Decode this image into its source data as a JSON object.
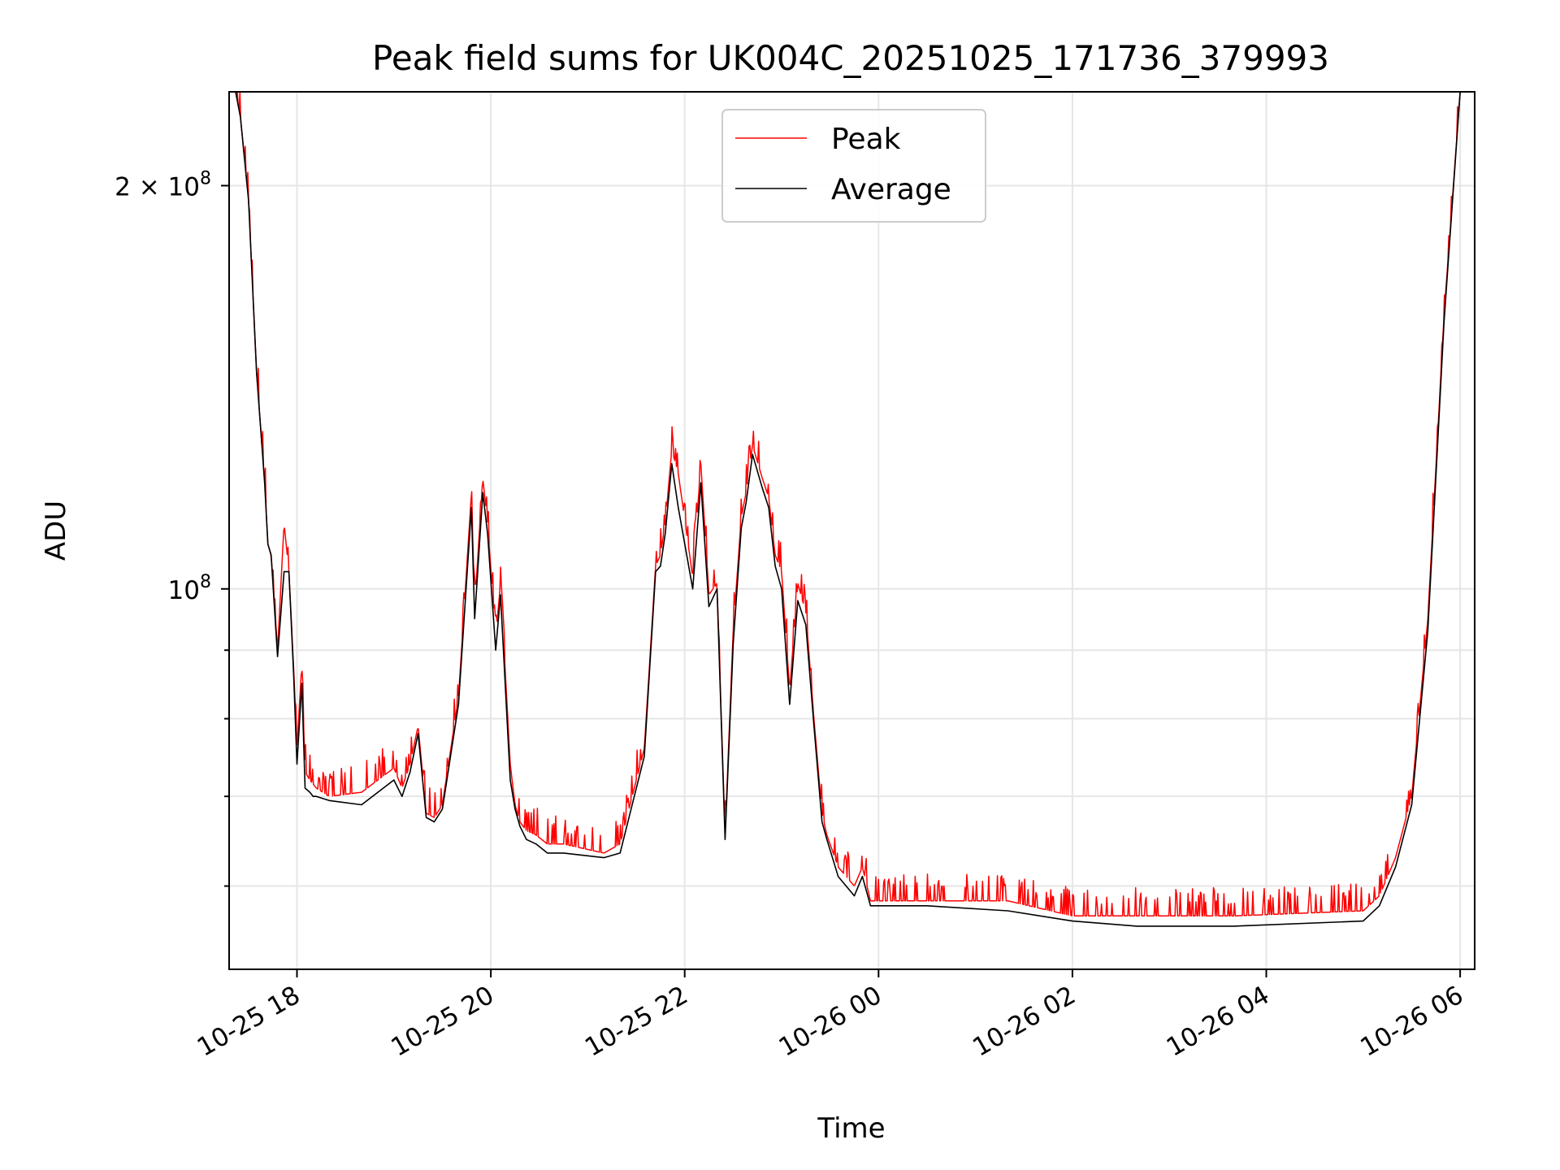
{
  "chart_data": {
    "type": "line",
    "title": "Peak field sums for UK004C_20251025_171736_379993",
    "xlabel": "Time",
    "ylabel": "ADU",
    "y_scale": "log",
    "ylim": [
      52000000,
      235000000
    ],
    "xlim": [
      "2025-10-25 17:18",
      "2025-10-26 06:09"
    ],
    "x_ticks": [
      {
        "value": "2025-10-25 18:00",
        "label": "10-25 18"
      },
      {
        "value": "2025-10-25 20:00",
        "label": "10-25 20"
      },
      {
        "value": "2025-10-25 22:00",
        "label": "10-25 22"
      },
      {
        "value": "2025-10-26 00:00",
        "label": "10-26 00"
      },
      {
        "value": "2025-10-26 02:00",
        "label": "10-26 02"
      },
      {
        "value": "2025-10-26 04:00",
        "label": "10-26 04"
      },
      {
        "value": "2025-10-26 06:00",
        "label": "10-26 06"
      }
    ],
    "y_ticks_labeled": [
      {
        "value": 100000000,
        "base": "10",
        "exp": "8",
        "mult": ""
      },
      {
        "value": 200000000,
        "base": "10",
        "exp": "8",
        "mult": "2 × "
      }
    ],
    "y_ticks_minor": [
      60000000,
      70000000,
      80000000,
      90000000
    ],
    "grid": true,
    "legend_position": "top-center",
    "series": [
      {
        "name": "Peak",
        "color": "#ff0000",
        "spikes_above_average": true,
        "x": [
          "2025-10-25 17:22",
          "2025-10-25 17:25",
          "2025-10-25 17:30",
          "2025-10-25 17:35",
          "2025-10-25 17:40",
          "2025-10-25 17:42",
          "2025-10-25 17:44",
          "2025-10-25 17:48",
          "2025-10-25 17:52",
          "2025-10-25 17:55",
          "2025-10-25 17:58",
          "2025-10-25 18:00",
          "2025-10-25 18:03",
          "2025-10-25 18:05",
          "2025-10-25 18:08",
          "2025-10-25 18:10",
          "2025-10-25 18:12",
          "2025-10-25 18:20",
          "2025-10-25 18:40",
          "2025-10-25 19:00",
          "2025-10-25 19:05",
          "2025-10-25 19:10",
          "2025-10-25 19:15",
          "2025-10-25 19:20",
          "2025-10-25 19:25",
          "2025-10-25 19:30",
          "2025-10-25 19:40",
          "2025-10-25 19:48",
          "2025-10-25 19:50",
          "2025-10-25 19:55",
          "2025-10-25 19:58",
          "2025-10-25 20:03",
          "2025-10-25 20:06",
          "2025-10-25 20:12",
          "2025-10-25 20:15",
          "2025-10-25 20:18",
          "2025-10-25 20:22",
          "2025-10-25 20:28",
          "2025-10-25 20:35",
          "2025-10-25 20:45",
          "2025-10-25 21:10",
          "2025-10-25 21:20",
          "2025-10-25 21:35",
          "2025-10-25 21:42",
          "2025-10-25 21:45",
          "2025-10-25 21:48",
          "2025-10-25 21:52",
          "2025-10-25 21:56",
          "2025-10-25 22:05",
          "2025-10-25 22:10",
          "2025-10-25 22:15",
          "2025-10-25 22:20",
          "2025-10-25 22:25",
          "2025-10-25 22:30",
          "2025-10-25 22:35",
          "2025-10-25 22:38",
          "2025-10-25 22:42",
          "2025-10-25 22:48",
          "2025-10-25 22:52",
          "2025-10-25 22:56",
          "2025-10-25 23:00",
          "2025-10-25 23:05",
          "2025-10-25 23:10",
          "2025-10-25 23:15",
          "2025-10-25 23:20",
          "2025-10-25 23:25",
          "2025-10-25 23:28",
          "2025-10-25 23:35",
          "2025-10-25 23:45",
          "2025-10-25 23:50",
          "2025-10-25 23:55",
          "2025-10-26 00:30",
          "2025-10-26 01:20",
          "2025-10-26 02:00",
          "2025-10-26 02:40",
          "2025-10-26 03:40",
          "2025-10-26 05:00",
          "2025-10-26 05:10",
          "2025-10-26 05:20",
          "2025-10-26 05:30",
          "2025-10-26 05:40",
          "2025-10-26 05:50",
          "2025-10-26 06:00"
        ],
        "y": [
          235000000,
          225000000,
          195000000,
          145000000,
          120000000,
          108000000,
          106000000,
          90000000,
          112000000,
          103000000,
          87000000,
          76000000,
          88000000,
          73000000,
          72000000,
          71500000,
          71000000,
          70000000,
          70500000,
          73500000,
          71000000,
          74000000,
          79000000,
          68000000,
          67500000,
          69000000,
          83000000,
          118000000,
          97000000,
          121000000,
          112000000,
          92000000,
          101000000,
          74000000,
          69000000,
          67000000,
          66000000,
          65500000,
          64500000,
          64500000,
          63500000,
          64500000,
          76000000,
          104000000,
          106000000,
          112000000,
          127000000,
          122000000,
          102000000,
          124000000,
          99000000,
          101000000,
          65500000,
          93000000,
          113000000,
          118000000,
          128000000,
          121000000,
          117000000,
          106000000,
          103000000,
          84000000,
          101000000,
          96000000,
          80000000,
          68000000,
          65500000,
          62000000,
          60000000,
          62000000,
          58500000,
          58500000,
          58500000,
          57000000,
          57000000,
          57000000,
          57500000,
          59000000,
          63000000,
          70000000,
          95000000,
          160000000,
          235000000
        ]
      },
      {
        "name": "Average",
        "color": "#000000",
        "x": [
          "2025-10-25 17:22",
          "2025-10-25 17:25",
          "2025-10-25 17:30",
          "2025-10-25 17:35",
          "2025-10-25 17:40",
          "2025-10-25 17:42",
          "2025-10-25 17:44",
          "2025-10-25 17:48",
          "2025-10-25 17:52",
          "2025-10-25 17:55",
          "2025-10-25 17:58",
          "2025-10-25 18:00",
          "2025-10-25 18:03",
          "2025-10-25 18:05",
          "2025-10-25 18:08",
          "2025-10-25 18:10",
          "2025-10-25 18:12",
          "2025-10-25 18:20",
          "2025-10-25 18:40",
          "2025-10-25 19:00",
          "2025-10-25 19:05",
          "2025-10-25 19:10",
          "2025-10-25 19:15",
          "2025-10-25 19:20",
          "2025-10-25 19:25",
          "2025-10-25 19:30",
          "2025-10-25 19:40",
          "2025-10-25 19:48",
          "2025-10-25 19:50",
          "2025-10-25 19:55",
          "2025-10-25 19:58",
          "2025-10-25 20:03",
          "2025-10-25 20:06",
          "2025-10-25 20:12",
          "2025-10-25 20:15",
          "2025-10-25 20:18",
          "2025-10-25 20:22",
          "2025-10-25 20:28",
          "2025-10-25 20:35",
          "2025-10-25 20:45",
          "2025-10-25 21:10",
          "2025-10-25 21:20",
          "2025-10-25 21:35",
          "2025-10-25 21:42",
          "2025-10-25 21:45",
          "2025-10-25 21:48",
          "2025-10-25 21:52",
          "2025-10-25 21:56",
          "2025-10-25 22:05",
          "2025-10-25 22:10",
          "2025-10-25 22:15",
          "2025-10-25 22:20",
          "2025-10-25 22:25",
          "2025-10-25 22:30",
          "2025-10-25 22:35",
          "2025-10-25 22:38",
          "2025-10-25 22:42",
          "2025-10-25 22:48",
          "2025-10-25 22:52",
          "2025-10-25 22:56",
          "2025-10-25 23:00",
          "2025-10-25 23:05",
          "2025-10-25 23:10",
          "2025-10-25 23:15",
          "2025-10-25 23:20",
          "2025-10-25 23:25",
          "2025-10-25 23:28",
          "2025-10-25 23:35",
          "2025-10-25 23:45",
          "2025-10-25 23:50",
          "2025-10-25 23:55",
          "2025-10-26 00:30",
          "2025-10-26 01:20",
          "2025-10-26 02:00",
          "2025-10-26 02:40",
          "2025-10-26 03:40",
          "2025-10-26 05:00",
          "2025-10-26 05:10",
          "2025-10-26 05:20",
          "2025-10-26 05:30",
          "2025-10-26 05:40",
          "2025-10-26 05:50",
          "2025-10-26 06:00"
        ],
        "y": [
          235000000,
          225000000,
          195000000,
          145000000,
          120000000,
          108000000,
          106000000,
          89000000,
          103000000,
          103000000,
          86000000,
          74000000,
          85000000,
          71000000,
          70500000,
          70000000,
          70000000,
          69500000,
          69000000,
          72000000,
          70000000,
          73000000,
          78000000,
          67500000,
          67000000,
          68500000,
          82000000,
          115000000,
          95000000,
          118000000,
          110000000,
          90000000,
          99000000,
          72000000,
          68500000,
          66500000,
          65000000,
          64500000,
          63500000,
          63500000,
          63000000,
          63500000,
          75000000,
          103000000,
          104000000,
          110000000,
          124000000,
          115000000,
          100000000,
          120000000,
          97000000,
          100000000,
          65000000,
          91000000,
          111000000,
          116000000,
          126000000,
          119000000,
          115000000,
          104000000,
          100000000,
          82000000,
          98000000,
          94000000,
          79000000,
          67000000,
          65000000,
          61000000,
          59000000,
          61000000,
          58000000,
          58000000,
          57500000,
          56500000,
          56000000,
          56000000,
          56500000,
          58000000,
          62000000,
          69000000,
          93000000,
          158000000,
          235000000
        ]
      }
    ]
  },
  "legend": {
    "peak_label": "Peak",
    "average_label": "Average"
  }
}
